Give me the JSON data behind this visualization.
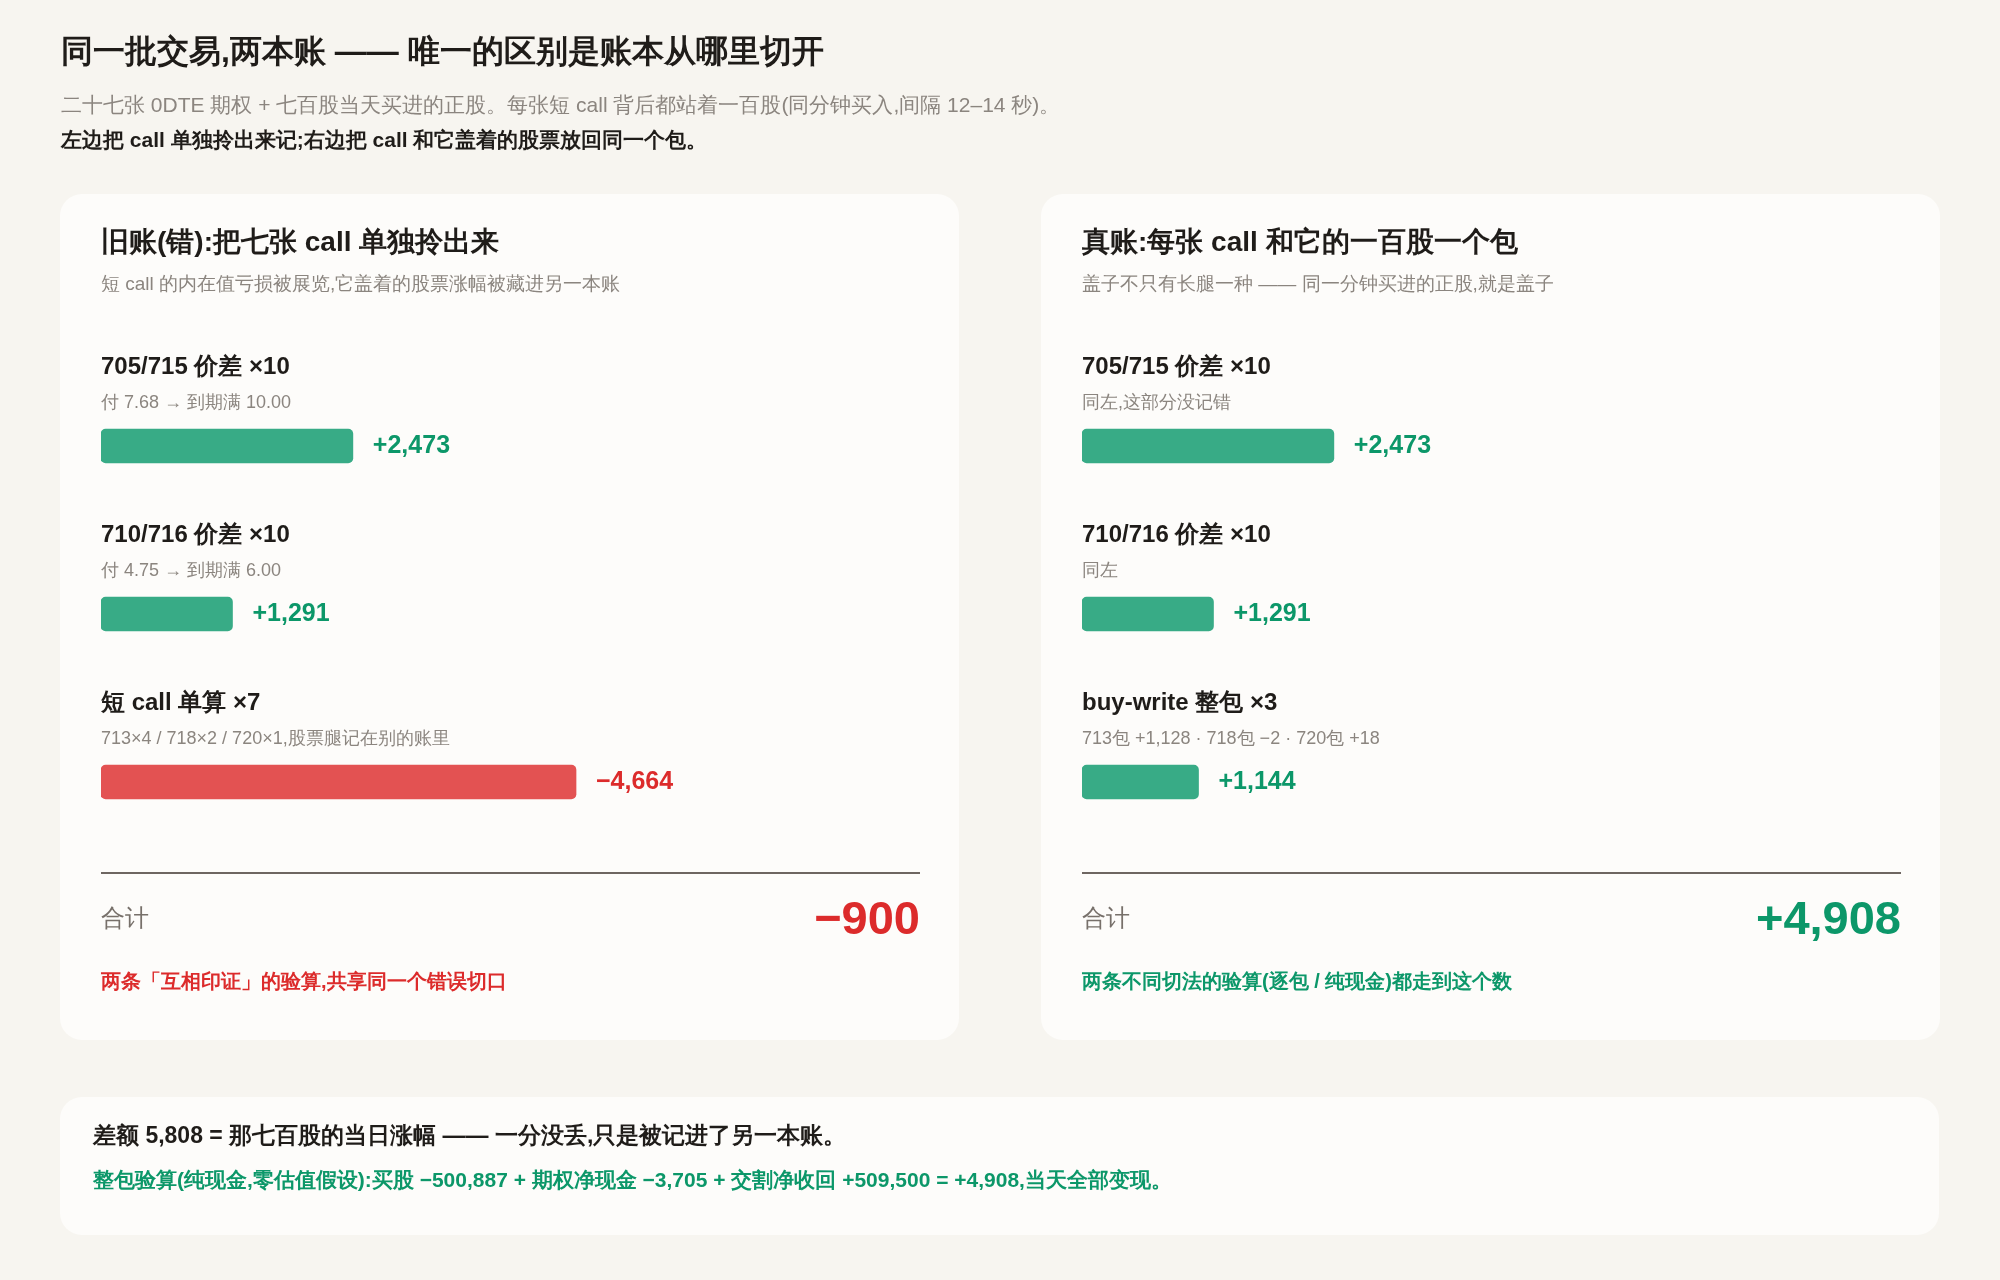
{
  "chart_data": [
    {
      "type": "other",
      "title": "同一批交易,两本账 —— 唯一的区别是账本从哪里切开",
      "subtitle": "二十七张 0DTE 期权 + 七百股当天买进的正股。每张短 call 背后都站着一百股(同分钟买入,间隔 12–14 秒)。",
      "annotations": [
        "左边把 call 单独拎出来记;右边把 call 和它盖着的股票放回同一个包。"
      ]
    },
    {
      "type": "bar",
      "orientation": "horizontal",
      "title": "旧账(错):把七张 call 单独拎出来",
      "subtitle": "短 call 的内在值亏损被展览,它盖着的股票涨幅被藏进另一本账",
      "categories": [
        "705/715 价差 ×10",
        "710/716 价差 ×10"
      ],
      "values": [
        2473,
        1291
      ],
      "color": "#38ab86",
      "value_labels": [
        "+2,473",
        "+1,291"
      ],
      "tick_labels": "y",
      "annotations": [
        "付 7.68 → 到期满 10.00",
        "付 4.75 → 到期满 6.00"
      ]
    },
    {
      "type": "bar",
      "orientation": "horizontal",
      "categories": [
        "短 call 单算 ×7"
      ],
      "values": [
        -4664
      ],
      "color": "#e35252",
      "value_labels": [
        "−4,664"
      ],
      "tick_labels": "y",
      "annotations": [
        "713×4 / 718×2 / 720×1,股票腿记在别的账里",
        "合计",
        "−900",
        "两条「互相印证」的验算,共享同一个错误切口"
      ]
    },
    {
      "type": "bar",
      "orientation": "horizontal",
      "title": "真账:每张 call 和它的一百股一个包",
      "subtitle": "盖子不只有长腿一种 —— 同一分钟买进的正股,就是盖子",
      "categories": [
        "705/715 价差 ×10",
        "710/716 价差 ×10",
        "buy-write 整包 ×3"
      ],
      "values": [
        2473,
        1291,
        1144
      ],
      "color": "#38ab86",
      "value_labels": [
        "+2,473",
        "+1,291",
        "+1,144"
      ],
      "tick_labels": "y",
      "annotations": [
        "同左,这部分没记错",
        "同左",
        "713包 +1,128 · 718包 −2 · 720包 +18",
        "合计",
        "+4,908",
        "两条不同切法的验算(逐包 / 纯现金)都走到这个数"
      ]
    },
    {
      "type": "other",
      "title": "差额 5,808 = 那七百股的当日涨幅 —— 一分没丢,只是被记进了另一本账。",
      "annotations": [
        "整包验算(纯现金,零估值假设):买股 −500,887 + 期权净现金 −3,705 + 交割净收回 +509,500 = +4,908,当天全部变现。"
      ]
    }
  ]
}
